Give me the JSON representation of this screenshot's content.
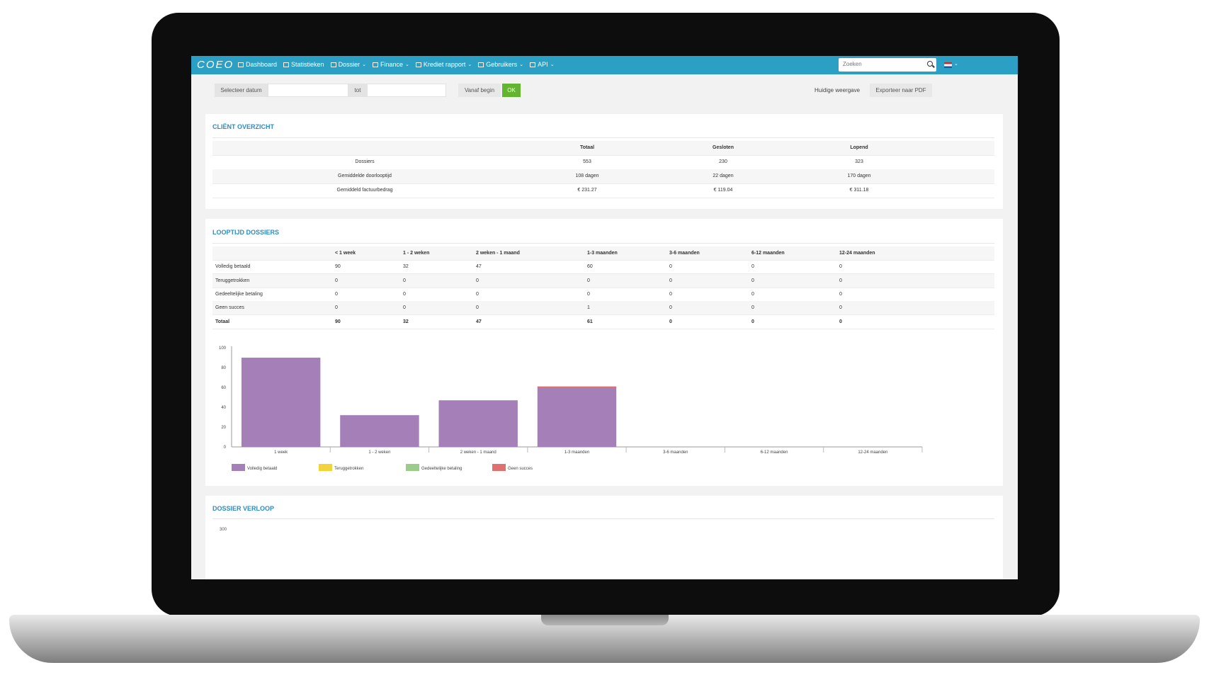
{
  "nav": {
    "logo": "COEO",
    "items": [
      {
        "label": "Dashboard",
        "icon": "dashboard-icon",
        "caret": false
      },
      {
        "label": "Statistieken",
        "icon": "bar-chart-icon",
        "caret": false
      },
      {
        "label": "Dossier",
        "icon": "file-icon",
        "caret": true
      },
      {
        "label": "Finance",
        "icon": "money-icon",
        "caret": true
      },
      {
        "label": "Krediet rapport",
        "icon": "document-icon",
        "caret": true
      },
      {
        "label": "Gebruikers",
        "icon": "list-icon",
        "caret": true
      },
      {
        "label": "API",
        "icon": "wrench-icon",
        "caret": true
      }
    ],
    "search_placeholder": "Zoeken",
    "caret_glyph": "⌄",
    "accent": "#2b9fc4"
  },
  "filter": {
    "select_date_label": "Selecteer datum",
    "to_label": "tot",
    "from_start_button": "Vanaf begin",
    "ok_button": "OK",
    "current_view_label": "Huidige weergave",
    "export_button": "Exporteer naar PDF"
  },
  "client_overview": {
    "title": "CLIËNT OVERZICHT",
    "headers": [
      "",
      "Totaal",
      "Gesloten",
      "Lopend"
    ],
    "rows": [
      [
        "Dossiers",
        "553",
        "230",
        "323"
      ],
      [
        "Gemiddelde doorlooptijd",
        "108 dagen",
        "22 dagen",
        "170 dagen"
      ],
      [
        "Gemiddeld factuurbedrag",
        "€ 231.27",
        "€ 119.04",
        "€ 311.18"
      ]
    ]
  },
  "duration": {
    "title": "LOOPTIJD DOSSIERS",
    "headers": [
      "",
      "< 1 week",
      "1 - 2 weken",
      "2 weken - 1 maand",
      "1-3 maanden",
      "3-6 maanden",
      "6-12 maanden",
      "12-24 maanden"
    ],
    "rows": [
      [
        "Volledig betaald",
        "90",
        "32",
        "47",
        "60",
        "0",
        "0",
        "0"
      ],
      [
        "Teruggetrokken",
        "0",
        "0",
        "0",
        "0",
        "0",
        "0",
        "0"
      ],
      [
        "Gedeeltelijke betaling",
        "0",
        "0",
        "0",
        "0",
        "0",
        "0",
        "0"
      ],
      [
        "Geen succes",
        "0",
        "0",
        "0",
        "1",
        "0",
        "0",
        "0"
      ],
      [
        "Totaal",
        "90",
        "32",
        "47",
        "61",
        "0",
        "0",
        "0"
      ]
    ]
  },
  "chart_data": {
    "type": "bar",
    "stacked": true,
    "categories": [
      "1 week",
      "1 - 2 weken",
      "2 weken - 1 maand",
      "1-3 maanden",
      "3-6 maanden",
      "6-12 maanden",
      "12-24 maanden"
    ],
    "series": [
      {
        "name": "Volledig betaald",
        "color": "#a47fb8",
        "values": [
          90,
          32,
          47,
          60,
          0,
          0,
          0
        ]
      },
      {
        "name": "Teruggetrokken",
        "color": "#f2d43a",
        "values": [
          0,
          0,
          0,
          0,
          0,
          0,
          0
        ]
      },
      {
        "name": "Gedeeltelijke betaling",
        "color": "#9ccc8a",
        "values": [
          0,
          0,
          0,
          0,
          0,
          0,
          0
        ]
      },
      {
        "name": "Geen succes",
        "color": "#e07070",
        "values": [
          0,
          0,
          0,
          1,
          0,
          0,
          0
        ]
      }
    ],
    "ylim": [
      0,
      100
    ],
    "yticks": [
      0,
      20,
      40,
      60,
      80,
      100
    ],
    "grid": false,
    "legend": "bottom-left"
  },
  "dossier_verloop": {
    "title": "DOSSIER VERLOOP",
    "first_tick": "300"
  }
}
